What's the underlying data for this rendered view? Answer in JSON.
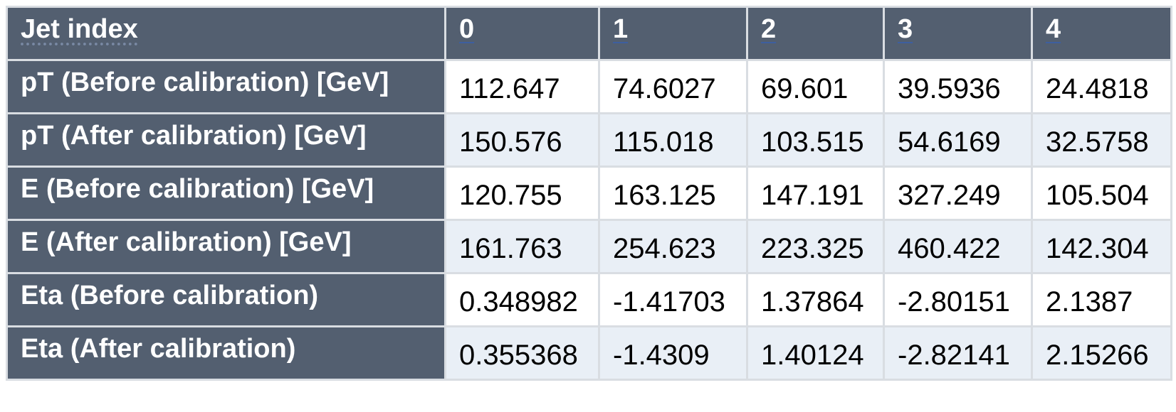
{
  "header": {
    "label": "Jet index",
    "columns": [
      "0",
      "1",
      "2",
      "3",
      "4"
    ]
  },
  "rows": [
    {
      "label": "pT (Before calibration) [GeV]",
      "values": [
        "112.647",
        "74.6027",
        "69.601",
        "39.5936",
        "24.4818"
      ]
    },
    {
      "label": "pT (After calibration) [GeV]",
      "values": [
        "150.576",
        "115.018",
        "103.515",
        "54.6169",
        "32.5758"
      ]
    },
    {
      "label": "E (Before calibration) [GeV]",
      "values": [
        "120.755",
        "163.125",
        "147.191",
        "327.249",
        "105.504"
      ]
    },
    {
      "label": "E (After calibration) [GeV]",
      "values": [
        "161.763",
        "254.623",
        "223.325",
        "460.422",
        "142.304"
      ]
    },
    {
      "label": "Eta (Before calibration)",
      "values": [
        "0.348982",
        "-1.41703",
        "1.37864",
        "-2.80151",
        "2.1387"
      ]
    },
    {
      "label": "Eta (After calibration)",
      "values": [
        "0.355368",
        "-1.4309",
        "1.40124",
        "-2.82141",
        "2.15266"
      ]
    }
  ]
}
